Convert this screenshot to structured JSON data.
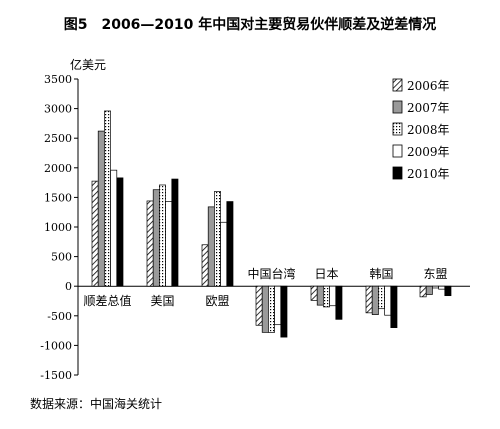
{
  "figure": {
    "title": "图5　2006—2010 年中国对主要贸易伙伴顺差及逆差情况",
    "unit": "亿美元",
    "source": "数据来源：中国海关统计"
  },
  "chart_data": {
    "type": "bar",
    "title": "图5　2006—2010 年中国对主要贸易伙伴顺差及逆差情况",
    "ylabel": "亿美元",
    "xlabel": "",
    "ylim": [
      -1500,
      3500
    ],
    "yticks": [
      -1500,
      -1000,
      -500,
      0,
      500,
      1000,
      1500,
      2000,
      2500,
      3000,
      3500
    ],
    "grid": false,
    "legend": "top-right",
    "categories": [
      "顺差总值",
      "美国",
      "欧盟",
      "中国台湾",
      "日本",
      "韩国",
      "东盟"
    ],
    "series": [
      {
        "name": "2006年",
        "pattern": "hatch",
        "values": [
          1775,
          1440,
          700,
          -660,
          -240,
          -450,
          -180
        ]
      },
      {
        "name": "2007年",
        "pattern": "gray",
        "values": [
          2620,
          1630,
          1340,
          -780,
          -320,
          -480,
          -140
        ]
      },
      {
        "name": "2008年",
        "pattern": "dots",
        "values": [
          2960,
          1710,
          1600,
          -780,
          -350,
          -380,
          -30
        ]
      },
      {
        "name": "2009年",
        "pattern": "white",
        "values": [
          1960,
          1430,
          1080,
          -650,
          -330,
          -490,
          -50
        ]
      },
      {
        "name": "2010年",
        "pattern": "black",
        "values": [
          1830,
          1810,
          1430,
          -860,
          -560,
          -700,
          -160
        ]
      }
    ]
  }
}
